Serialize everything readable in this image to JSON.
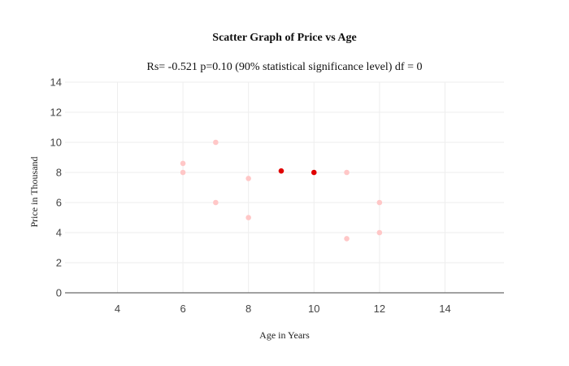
{
  "chart_data": {
    "type": "scatter",
    "title": "Scatter Graph of Price vs Age",
    "subtitle": "Rs= -0.521  p=0.10 (90% statistical significance level)  df = 0",
    "xlabel": "Age in Years",
    "ylabel": "Price in Thousand",
    "xlim": [
      2.4,
      15.8
    ],
    "ylim": [
      0,
      14
    ],
    "x_ticks": [
      4,
      6,
      8,
      10,
      12,
      14
    ],
    "y_ticks": [
      0,
      2,
      4,
      6,
      8,
      10,
      12,
      14
    ],
    "grid": true,
    "series": [
      {
        "color": "#ffc7c7",
        "points": [
          {
            "x": 6,
            "y": 8.6
          },
          {
            "x": 6,
            "y": 8
          },
          {
            "x": 7,
            "y": 10
          },
          {
            "x": 7,
            "y": 6
          },
          {
            "x": 8,
            "y": 7.6
          },
          {
            "x": 8,
            "y": 5
          },
          {
            "x": 11,
            "y": 8
          },
          {
            "x": 11,
            "y": 3.6
          },
          {
            "x": 12,
            "y": 6
          },
          {
            "x": 12,
            "y": 4
          }
        ]
      },
      {
        "color": "#e00000",
        "points": [
          {
            "x": 9,
            "y": 8.1
          },
          {
            "x": 10,
            "y": 8
          }
        ]
      }
    ]
  }
}
